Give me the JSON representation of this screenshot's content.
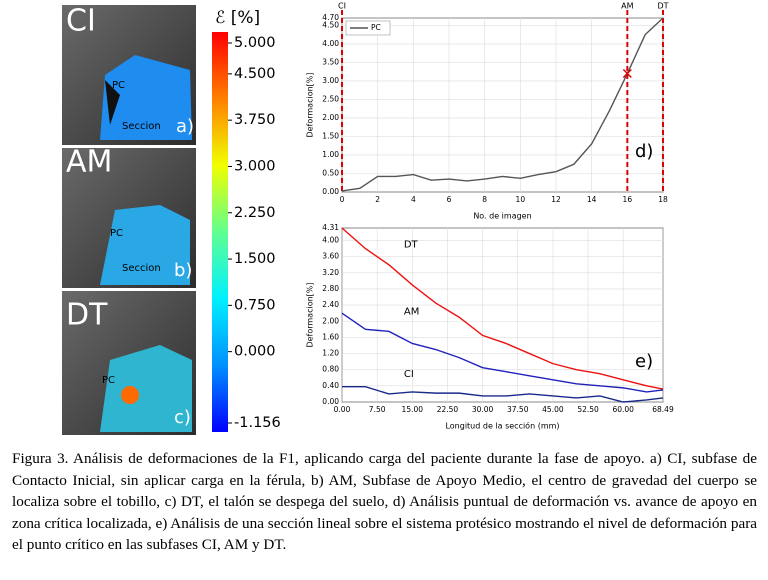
{
  "figure": {
    "photos": [
      {
        "stage": "CI",
        "labels": [
          "PC",
          "Seccion"
        ],
        "panel": "a)"
      },
      {
        "stage": "AM",
        "labels": [
          "PC",
          "Seccion"
        ],
        "panel": "b)"
      },
      {
        "stage": "DT",
        "labels": [
          "PC"
        ],
        "panel": "c)"
      }
    ],
    "colorbar": {
      "label": "ℰ [%]",
      "lim": [
        -1.156,
        5
      ],
      "ticks": [
        {
          "value": 5,
          "label": "5.000"
        },
        {
          "value": 4.5,
          "label": "4.500"
        },
        {
          "value": 3.75,
          "label": "3.750"
        },
        {
          "value": 3,
          "label": "3.000"
        },
        {
          "value": 2.25,
          "label": "2.250"
        },
        {
          "value": 1.5,
          "label": "1.500"
        },
        {
          "value": 0.75,
          "label": "0.750"
        },
        {
          "value": 0,
          "label": "0.000"
        },
        {
          "value": -1.156,
          "label": "-1.156"
        }
      ],
      "colors": [
        "#0000ff",
        "#0090ff",
        "#00f0ff",
        "#60ff90",
        "#f0ff00",
        "#ff8000",
        "#ff0000"
      ]
    }
  },
  "chart_data": [
    {
      "type": "line",
      "x": [
        0,
        1,
        2,
        3,
        4,
        5,
        6,
        7,
        8,
        9,
        10,
        11,
        12,
        13,
        14,
        15,
        16,
        17,
        18
      ],
      "series": [
        {
          "name": "PC",
          "color": "#555555",
          "values": [
            0.03,
            0.1,
            0.42,
            0.42,
            0.47,
            0.32,
            0.35,
            0.3,
            0.35,
            0.42,
            0.37,
            0.47,
            0.55,
            0.75,
            1.3,
            2.2,
            3.2,
            4.25,
            4.7
          ]
        }
      ],
      "xlim": [
        0,
        18
      ],
      "ylim": [
        0,
        4.7
      ],
      "xticks": [
        0,
        2,
        4,
        6,
        8,
        10,
        12,
        14,
        16,
        18
      ],
      "yticks": [
        {
          "value": 0,
          "label": "0.00"
        },
        {
          "value": 0.5,
          "label": "0.50"
        },
        {
          "value": 1,
          "label": "1.00"
        },
        {
          "value": 1.5,
          "label": "1.50"
        },
        {
          "value": 2,
          "label": "2.00"
        },
        {
          "value": 2.5,
          "label": "2.50"
        },
        {
          "value": 3,
          "label": "3.00"
        },
        {
          "value": 3.5,
          "label": "3.50"
        },
        {
          "value": 4,
          "label": "4.00"
        },
        {
          "value": 4.5,
          "label": "4.50"
        },
        {
          "value": 4.7,
          "label": "4.70"
        }
      ],
      "xlabel": "No. de imagen",
      "ylabel": "Deformacion[%]",
      "legend": "upper left",
      "panel_label": "d)",
      "vlines": [
        {
          "x": 0,
          "label": "CI"
        },
        {
          "x": 16,
          "label": "AM"
        },
        {
          "x": 18,
          "label": "DT"
        }
      ],
      "vline_color": "#e00000",
      "highlight_index": 16
    },
    {
      "type": "line",
      "x": [
        0,
        5,
        10,
        15,
        20,
        25,
        30,
        35,
        40,
        45,
        50,
        55,
        60,
        65,
        68.49
      ],
      "series": [
        {
          "name": "DT",
          "color": "#ee1111",
          "values": [
            4.31,
            3.8,
            3.4,
            2.9,
            2.45,
            2.1,
            1.65,
            1.45,
            1.2,
            0.95,
            0.8,
            0.7,
            0.55,
            0.4,
            0.32
          ]
        },
        {
          "name": "AM",
          "color": "#2222bb",
          "values": [
            2.2,
            1.8,
            1.75,
            1.45,
            1.3,
            1.1,
            0.85,
            0.75,
            0.65,
            0.55,
            0.45,
            0.4,
            0.35,
            0.25,
            0.3
          ]
        },
        {
          "name": "CI",
          "color": "#1a2a8a",
          "values": [
            0.38,
            0.38,
            0.2,
            0.25,
            0.22,
            0.22,
            0.15,
            0.15,
            0.2,
            0.15,
            0.1,
            0.15,
            0,
            0.05,
            0.1
          ]
        }
      ],
      "xlim": [
        0,
        68.49
      ],
      "ylim": [
        0,
        4.31
      ],
      "xticks": [
        {
          "value": 0,
          "label": "0.00"
        },
        {
          "value": 7.5,
          "label": "7.50"
        },
        {
          "value": 15,
          "label": "15.00"
        },
        {
          "value": 22.5,
          "label": "22.50"
        },
        {
          "value": 30,
          "label": "30.00"
        },
        {
          "value": 37.5,
          "label": "37.50"
        },
        {
          "value": 45,
          "label": "45.00"
        },
        {
          "value": 52.5,
          "label": "52.50"
        },
        {
          "value": 60,
          "label": "60.00"
        },
        {
          "value": 68.49,
          "label": "68.49"
        }
      ],
      "yticks": [
        {
          "value": 0,
          "label": "0.00"
        },
        {
          "value": 0.4,
          "label": "0.40"
        },
        {
          "value": 0.8,
          "label": "0.80"
        },
        {
          "value": 1.2,
          "label": "1.20"
        },
        {
          "value": 1.6,
          "label": "1.60"
        },
        {
          "value": 2,
          "label": "2.00"
        },
        {
          "value": 2.4,
          "label": "2.40"
        },
        {
          "value": 2.8,
          "label": "2.80"
        },
        {
          "value": 3.2,
          "label": "3.20"
        },
        {
          "value": 3.6,
          "label": "3.60"
        },
        {
          "value": 4,
          "label": "4.00"
        },
        {
          "value": 4.31,
          "label": "4.31"
        }
      ],
      "xlabel": "Longitud de la sección (mm)",
      "ylabel": "Deformacion[%]",
      "legend": "inline",
      "panel_label": "e)"
    }
  ],
  "caption": "Figura 3. Análisis de deformaciones de la F1, aplicando carga del paciente durante la fase de apoyo. a) CI, subfase de Contacto Inicial, sin aplicar carga en la férula, b) AM, Subfase de Apoyo Medio, el centro de gravedad del cuerpo se localiza sobre el tobillo, c) DT, el talón se despega del suelo, d) Análisis puntual de deformación vs.  avance de apoyo en zona crítica localizada, e) Análisis de una sección lineal sobre el sistema protésico mostrando el nivel de deformación para el punto crítico en las subfases CI, AM y DT."
}
